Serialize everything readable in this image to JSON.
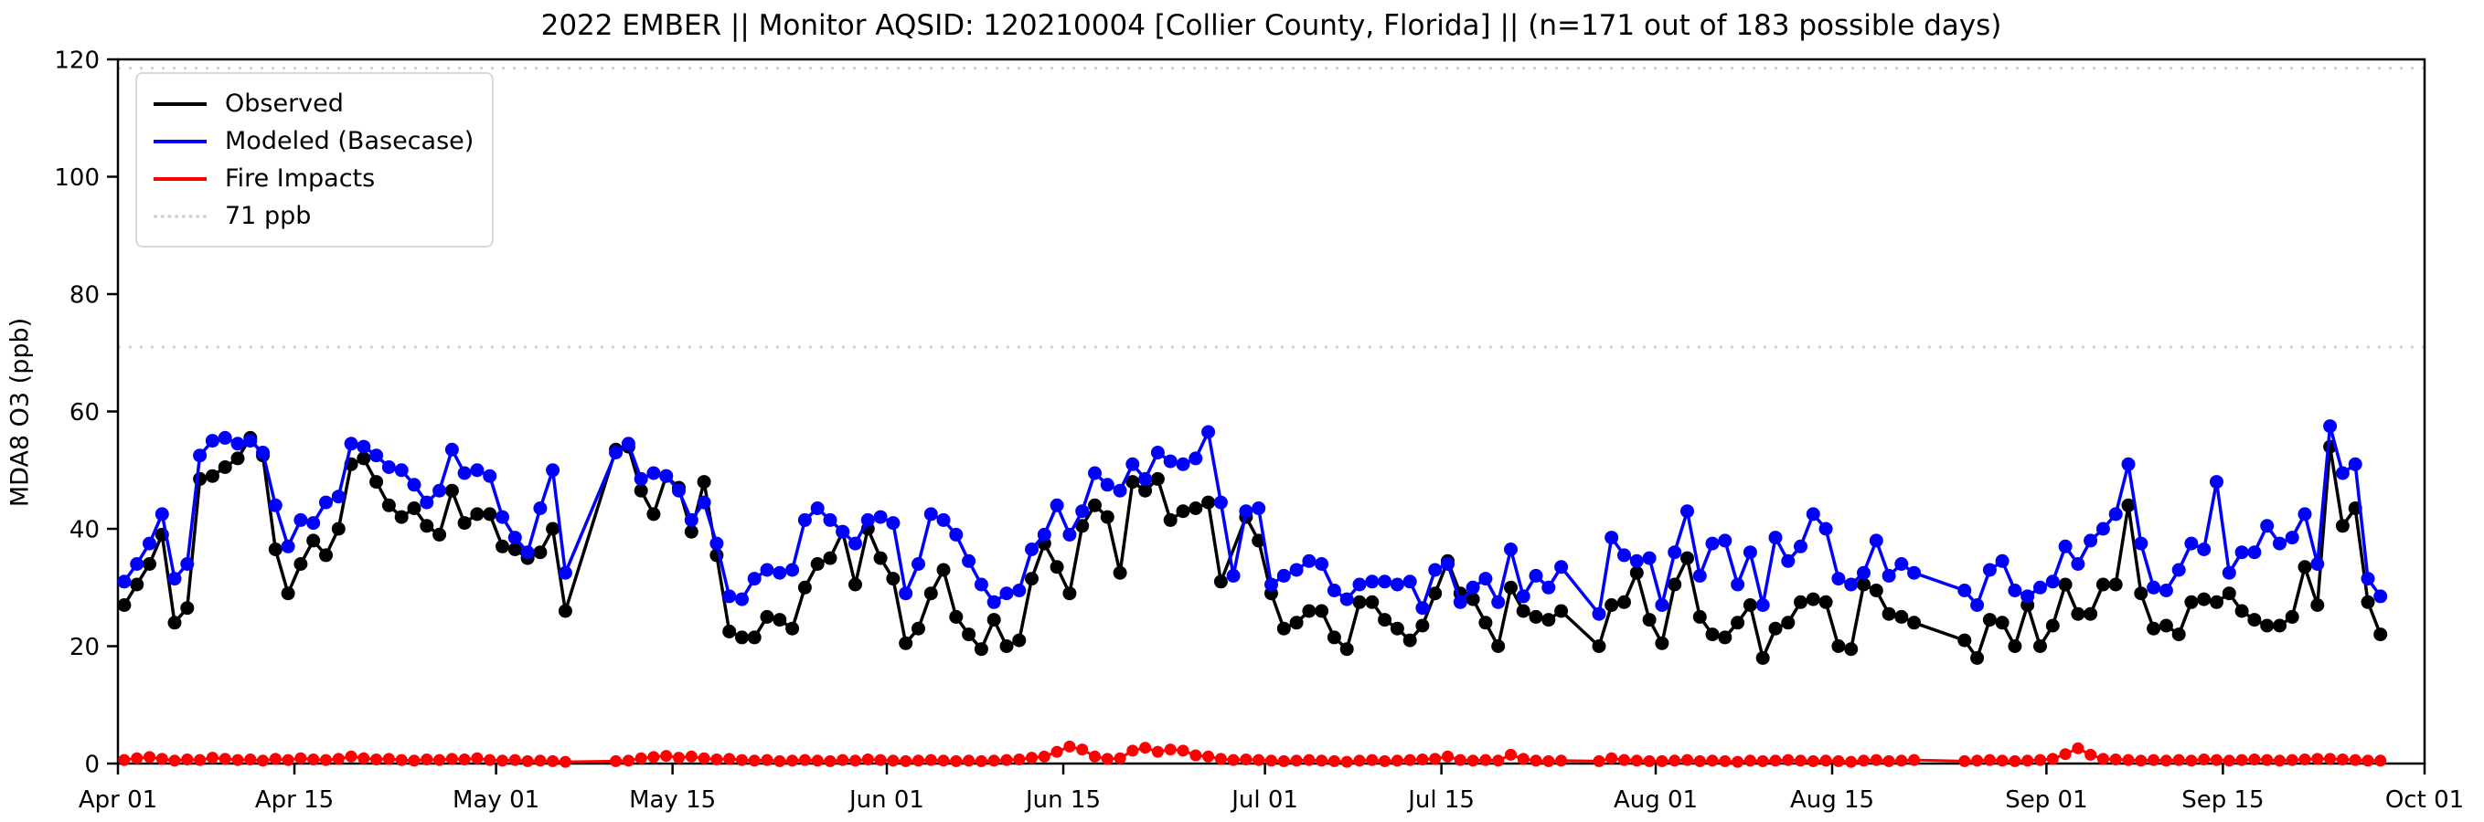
{
  "chart_data": {
    "type": "line",
    "title": "2022 EMBER || Monitor AQSID: 120210004 [Collier County, Florida] || (n=171 out of 183 possible days)",
    "xlabel": "",
    "ylabel": "MDA8 O3 (ppb)",
    "ylim": [
      0,
      120
    ],
    "yticks": [
      0,
      20,
      40,
      60,
      80,
      100,
      120
    ],
    "grid": false,
    "legend_position": "upper-left",
    "n_days_with_data": 171,
    "n_possible_days": 183,
    "date_start": "Apr 01",
    "date_end": "Oct 01",
    "xticks": [
      {
        "label": "Apr 01",
        "day": 0
      },
      {
        "label": "Apr 15",
        "day": 14
      },
      {
        "label": "May 01",
        "day": 30
      },
      {
        "label": "May 15",
        "day": 44
      },
      {
        "label": "Jun 01",
        "day": 61
      },
      {
        "label": "Jun 15",
        "day": 75
      },
      {
        "label": "Jul 01",
        "day": 91
      },
      {
        "label": "Jul 15",
        "day": 105
      },
      {
        "label": "Aug 01",
        "day": 122
      },
      {
        "label": "Aug 15",
        "day": 136
      },
      {
        "label": "Sep 01",
        "day": 153
      },
      {
        "label": "Sep 15",
        "day": 167
      },
      {
        "label": "Oct 01",
        "day": 183
      }
    ],
    "thresholds": [
      {
        "label": "71 ppb",
        "value": 71,
        "color": "#d3d3d3",
        "style": "dotted"
      },
      {
        "label": "",
        "value": 118.5,
        "color": "#d3d3d3",
        "style": "dotted"
      }
    ],
    "legend": [
      {
        "label": "Observed",
        "color": "#000000",
        "style": "solid"
      },
      {
        "label": "Modeled (Basecase)",
        "color": "#0000ff",
        "style": "solid"
      },
      {
        "label": "Fire Impacts",
        "color": "#ff0000",
        "style": "solid"
      },
      {
        "label": "71 ppb",
        "color": "#d3d3d3",
        "style": "dotted"
      }
    ],
    "series": [
      {
        "name": "Observed",
        "color": "#000000",
        "values": [
          27,
          30.5,
          34,
          39,
          24,
          26.5,
          48.5,
          49,
          50.5,
          52,
          55.5,
          52.5,
          36.5,
          29,
          34,
          38,
          35.5,
          40,
          51,
          52,
          48,
          44,
          42,
          43.5,
          40.5,
          39,
          46.5,
          41,
          42.5,
          42.5,
          37,
          36.5,
          35,
          36,
          40,
          26,
          null,
          null,
          null,
          53.5,
          54,
          46.5,
          42.5,
          49,
          47,
          39.5,
          48,
          35.5,
          22.5,
          21.5,
          21.5,
          25,
          24.5,
          23,
          30,
          34,
          35,
          39.5,
          30.5,
          40,
          35,
          31.5,
          20.5,
          23,
          29,
          33,
          25,
          22,
          19.5,
          24.5,
          20,
          21,
          31.5,
          37.5,
          33.5,
          29,
          40.5,
          44,
          42,
          32.5,
          48,
          46.5,
          48.5,
          41.5,
          43,
          43.5,
          44.5,
          31,
          null,
          42,
          38,
          29,
          23,
          24,
          26,
          26,
          21.5,
          19.5,
          27.5,
          27.5,
          24.5,
          23,
          21,
          23.5,
          29,
          34.5,
          29,
          28,
          24,
          20,
          30,
          26,
          25,
          24.5,
          26,
          null,
          null,
          20,
          27,
          27.5,
          32.5,
          24.5,
          20.5,
          30.5,
          35,
          25,
          22,
          21.5,
          24,
          27,
          18,
          23,
          24,
          27.5,
          28,
          27.5,
          20,
          19.5,
          30.5,
          29.5,
          25.5,
          25,
          24,
          null,
          null,
          null,
          21,
          18,
          24.5,
          24,
          20,
          27,
          20,
          23.5,
          30.5,
          25.5,
          25.5,
          30.5,
          30.5,
          44,
          29,
          23,
          23.5,
          22,
          27.5,
          28,
          27.5,
          29,
          26,
          24.5,
          23.5,
          23.5,
          25,
          33.5,
          27,
          54,
          40.5,
          43.5,
          27.5,
          22,
          null,
          null,
          null
        ]
      },
      {
        "name": "Modeled (Basecase)",
        "color": "#0000ff",
        "values": [
          31,
          34,
          37.5,
          42.5,
          31.5,
          34,
          52.5,
          55,
          55.5,
          54.5,
          55,
          53,
          44,
          37,
          41.5,
          41,
          44.5,
          45.5,
          54.5,
          54,
          52.5,
          50.5,
          50,
          47.5,
          44.5,
          46.5,
          53.5,
          49.5,
          50,
          49,
          42,
          38.5,
          36,
          43.5,
          50,
          32.5,
          null,
          null,
          null,
          53,
          54.5,
          48.5,
          49.5,
          49,
          46.5,
          41.5,
          44.5,
          37.5,
          28.5,
          28,
          31.5,
          33,
          32.5,
          33,
          41.5,
          43.5,
          41.5,
          39.5,
          37.5,
          41.5,
          42,
          41,
          29,
          34,
          42.5,
          41.5,
          39,
          34.5,
          30.5,
          27.5,
          29,
          29.5,
          36.5,
          39,
          44,
          39,
          43,
          49.5,
          47.5,
          46.5,
          51,
          48.5,
          53,
          51.5,
          51,
          52,
          56.5,
          44.5,
          32,
          43,
          43.5,
          30.5,
          32,
          33,
          34.5,
          34,
          29.5,
          28,
          30.5,
          31,
          31,
          30.5,
          31,
          26.5,
          33,
          34,
          27.5,
          30,
          31.5,
          27.5,
          36.5,
          28.5,
          32,
          30,
          33.5,
          null,
          null,
          25.5,
          38.5,
          35.5,
          34.5,
          35,
          27,
          36,
          43,
          32,
          37.5,
          38,
          30.5,
          36,
          27,
          38.5,
          34.5,
          37,
          42.5,
          40,
          31.5,
          30.5,
          32.5,
          38,
          32,
          34,
          32.5,
          null,
          null,
          null,
          29.5,
          27,
          33,
          34.5,
          29.5,
          28.5,
          30,
          31,
          37,
          34,
          38,
          40,
          42.5,
          51,
          37.5,
          30,
          29.5,
          33,
          37.5,
          36.5,
          48,
          32.5,
          36,
          36,
          40.5,
          37.5,
          38.5,
          42.5,
          34,
          57.5,
          49.5,
          51,
          31.5,
          28.5,
          null,
          null,
          null
        ]
      },
      {
        "name": "Fire Impacts",
        "color": "#ff0000",
        "values": [
          0.6,
          0.9,
          1.1,
          0.8,
          0.5,
          0.7,
          0.6,
          1.0,
          0.8,
          0.6,
          0.7,
          0.5,
          0.8,
          0.6,
          0.9,
          0.7,
          0.6,
          0.8,
          1.2,
          0.9,
          0.7,
          0.8,
          0.6,
          0.5,
          0.7,
          0.6,
          0.8,
          0.7,
          0.9,
          0.6,
          0.5,
          0.6,
          0.4,
          0.5,
          0.4,
          0.3,
          null,
          null,
          null,
          0.4,
          0.5,
          0.9,
          1.1,
          1.3,
          1.0,
          1.2,
          0.9,
          0.7,
          0.8,
          0.6,
          0.5,
          0.6,
          0.4,
          0.5,
          0.6,
          0.5,
          0.4,
          0.6,
          0.5,
          0.7,
          0.6,
          0.5,
          0.4,
          0.5,
          0.6,
          0.5,
          0.4,
          0.5,
          0.4,
          0.5,
          0.6,
          0.7,
          1.0,
          1.2,
          2.0,
          2.9,
          2.4,
          1.2,
          0.8,
          0.9,
          2.2,
          2.7,
          2.0,
          2.4,
          2.2,
          1.4,
          1.2,
          0.8,
          0.6,
          0.7,
          0.6,
          0.5,
          0.4,
          0.5,
          0.6,
          0.5,
          0.4,
          0.3,
          0.5,
          0.6,
          0.4,
          0.5,
          0.6,
          0.7,
          0.8,
          1.2,
          0.6,
          0.5,
          0.6,
          0.5,
          1.5,
          0.8,
          0.5,
          0.4,
          0.5,
          null,
          null,
          0.4,
          0.9,
          0.6,
          0.5,
          0.4,
          0.4,
          0.5,
          0.6,
          0.4,
          0.5,
          0.4,
          0.3,
          0.5,
          0.4,
          0.5,
          0.6,
          0.5,
          0.4,
          0.5,
          0.4,
          0.3,
          0.5,
          0.6,
          0.4,
          0.5,
          0.6,
          null,
          null,
          null,
          0.4,
          0.5,
          0.6,
          0.5,
          0.4,
          0.5,
          0.6,
          0.8,
          1.6,
          2.6,
          1.5,
          0.8,
          0.7,
          0.6,
          0.5,
          0.6,
          0.5,
          0.6,
          0.5,
          0.7,
          0.6,
          0.5,
          0.6,
          0.7,
          0.6,
          0.5,
          0.6,
          0.7,
          0.8,
          0.8,
          0.7,
          0.6,
          0.5,
          0.5,
          null,
          null,
          null
        ]
      }
    ]
  }
}
